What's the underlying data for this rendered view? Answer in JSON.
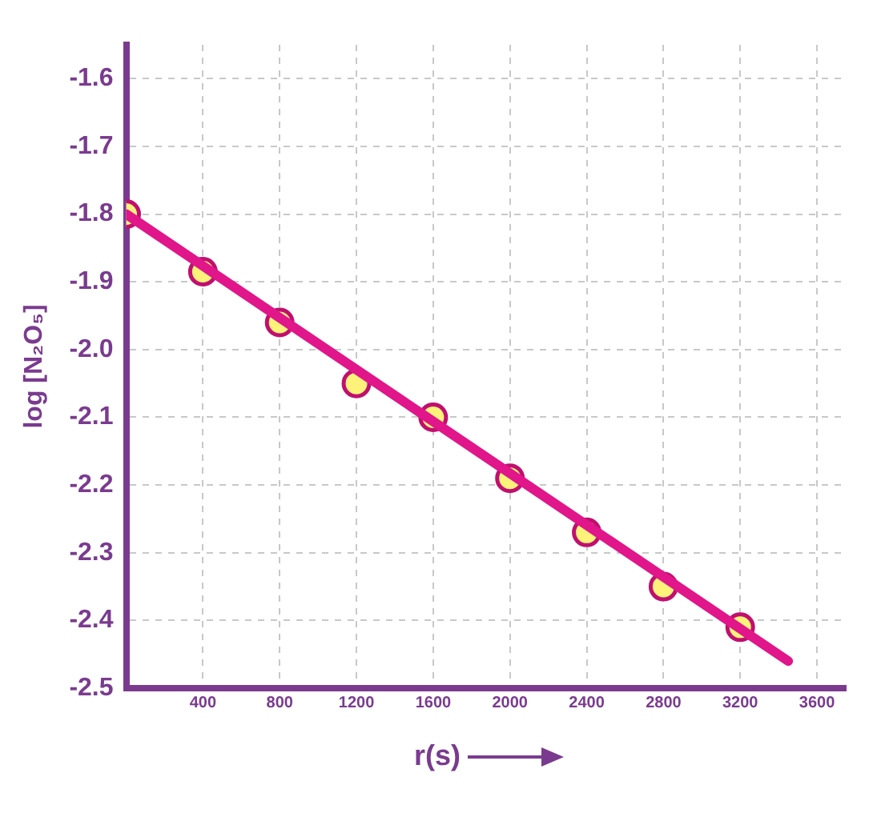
{
  "chart_data": {
    "type": "scatter",
    "xlabel": "r(s)",
    "ylabel": "log [N₂O₅]",
    "xlim": [
      0,
      3750
    ],
    "xticks": [
      400,
      800,
      1200,
      1600,
      2000,
      2400,
      2800,
      3200,
      3600
    ],
    "ylim": [
      -2.5,
      -1.55
    ],
    "yticks": [
      -2.5,
      -2.4,
      -2.3,
      -2.2,
      -2.1,
      {
        "value": -2.0,
        "label": "-2.0"
      },
      -1.9,
      -1.8,
      -1.7,
      -1.6
    ],
    "grid": true,
    "legend": false,
    "series": [
      {
        "type": "line",
        "color": "#e0168a",
        "x": [
          0,
          3450
        ],
        "values": [
          -1.8,
          -2.46
        ],
        "marker": "none",
        "line_style": "solid"
      },
      {
        "type": "scatter",
        "color": "#fff27a",
        "x": [
          0,
          400,
          800,
          1200,
          1600,
          2000,
          2400,
          2800,
          3200
        ],
        "values": [
          -1.8,
          -1.885,
          -1.96,
          -2.05,
          -2.1,
          -2.19,
          -2.27,
          -2.35,
          -2.41
        ],
        "marker": "circle"
      }
    ]
  }
}
